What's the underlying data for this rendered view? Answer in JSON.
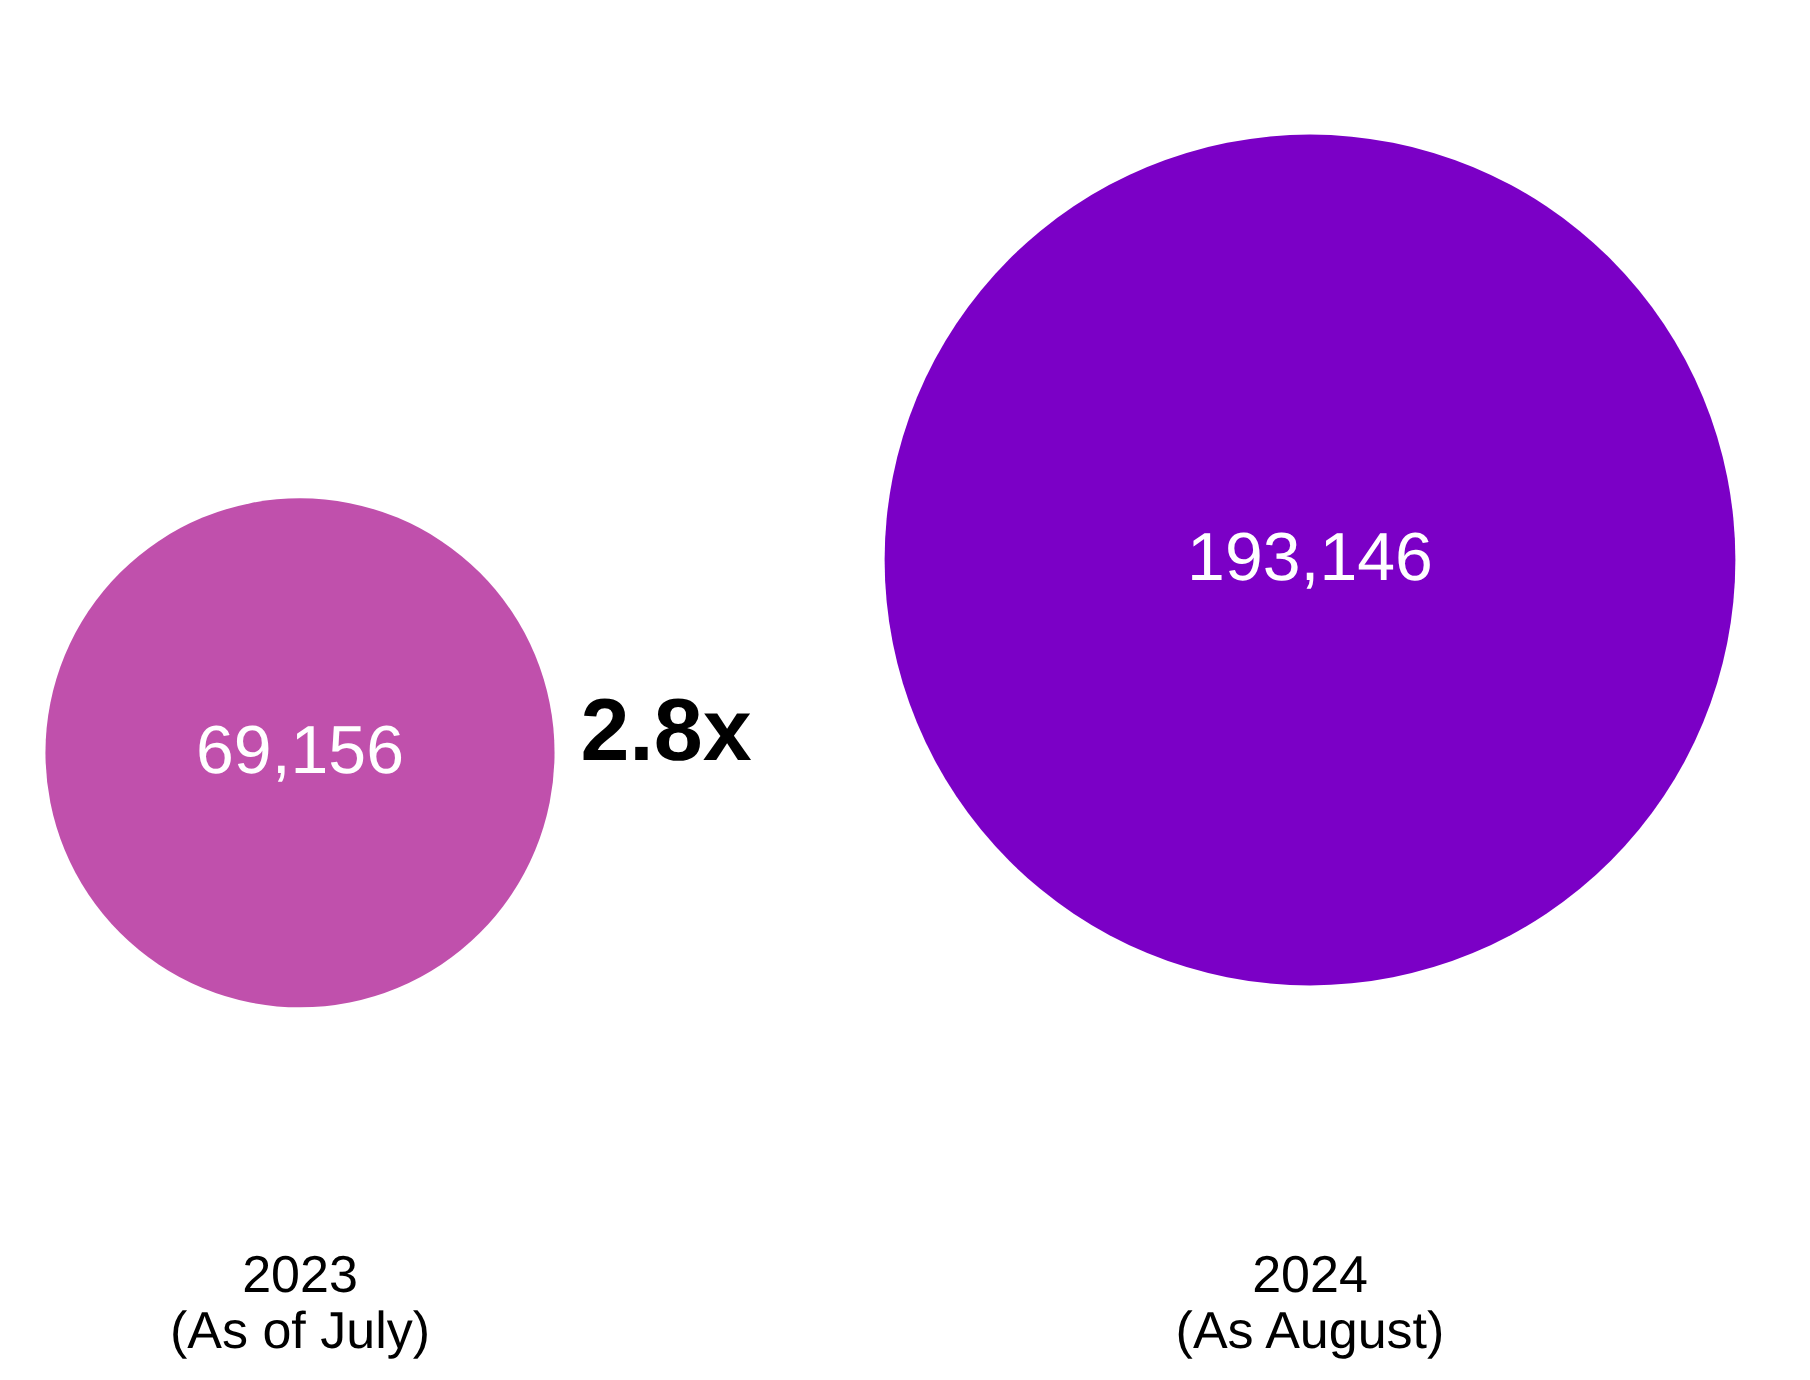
{
  "chart_data": {
    "type": "other",
    "categories": [
      "2023\n(As of July)",
      "2024\n(As August)"
    ],
    "values": [
      69156,
      193146
    ],
    "colors": [
      "#c050ac",
      "#7b00c6"
    ],
    "value_labels": [
      "69,156",
      "193,146"
    ],
    "annotations": [
      "2.8x"
    ]
  }
}
